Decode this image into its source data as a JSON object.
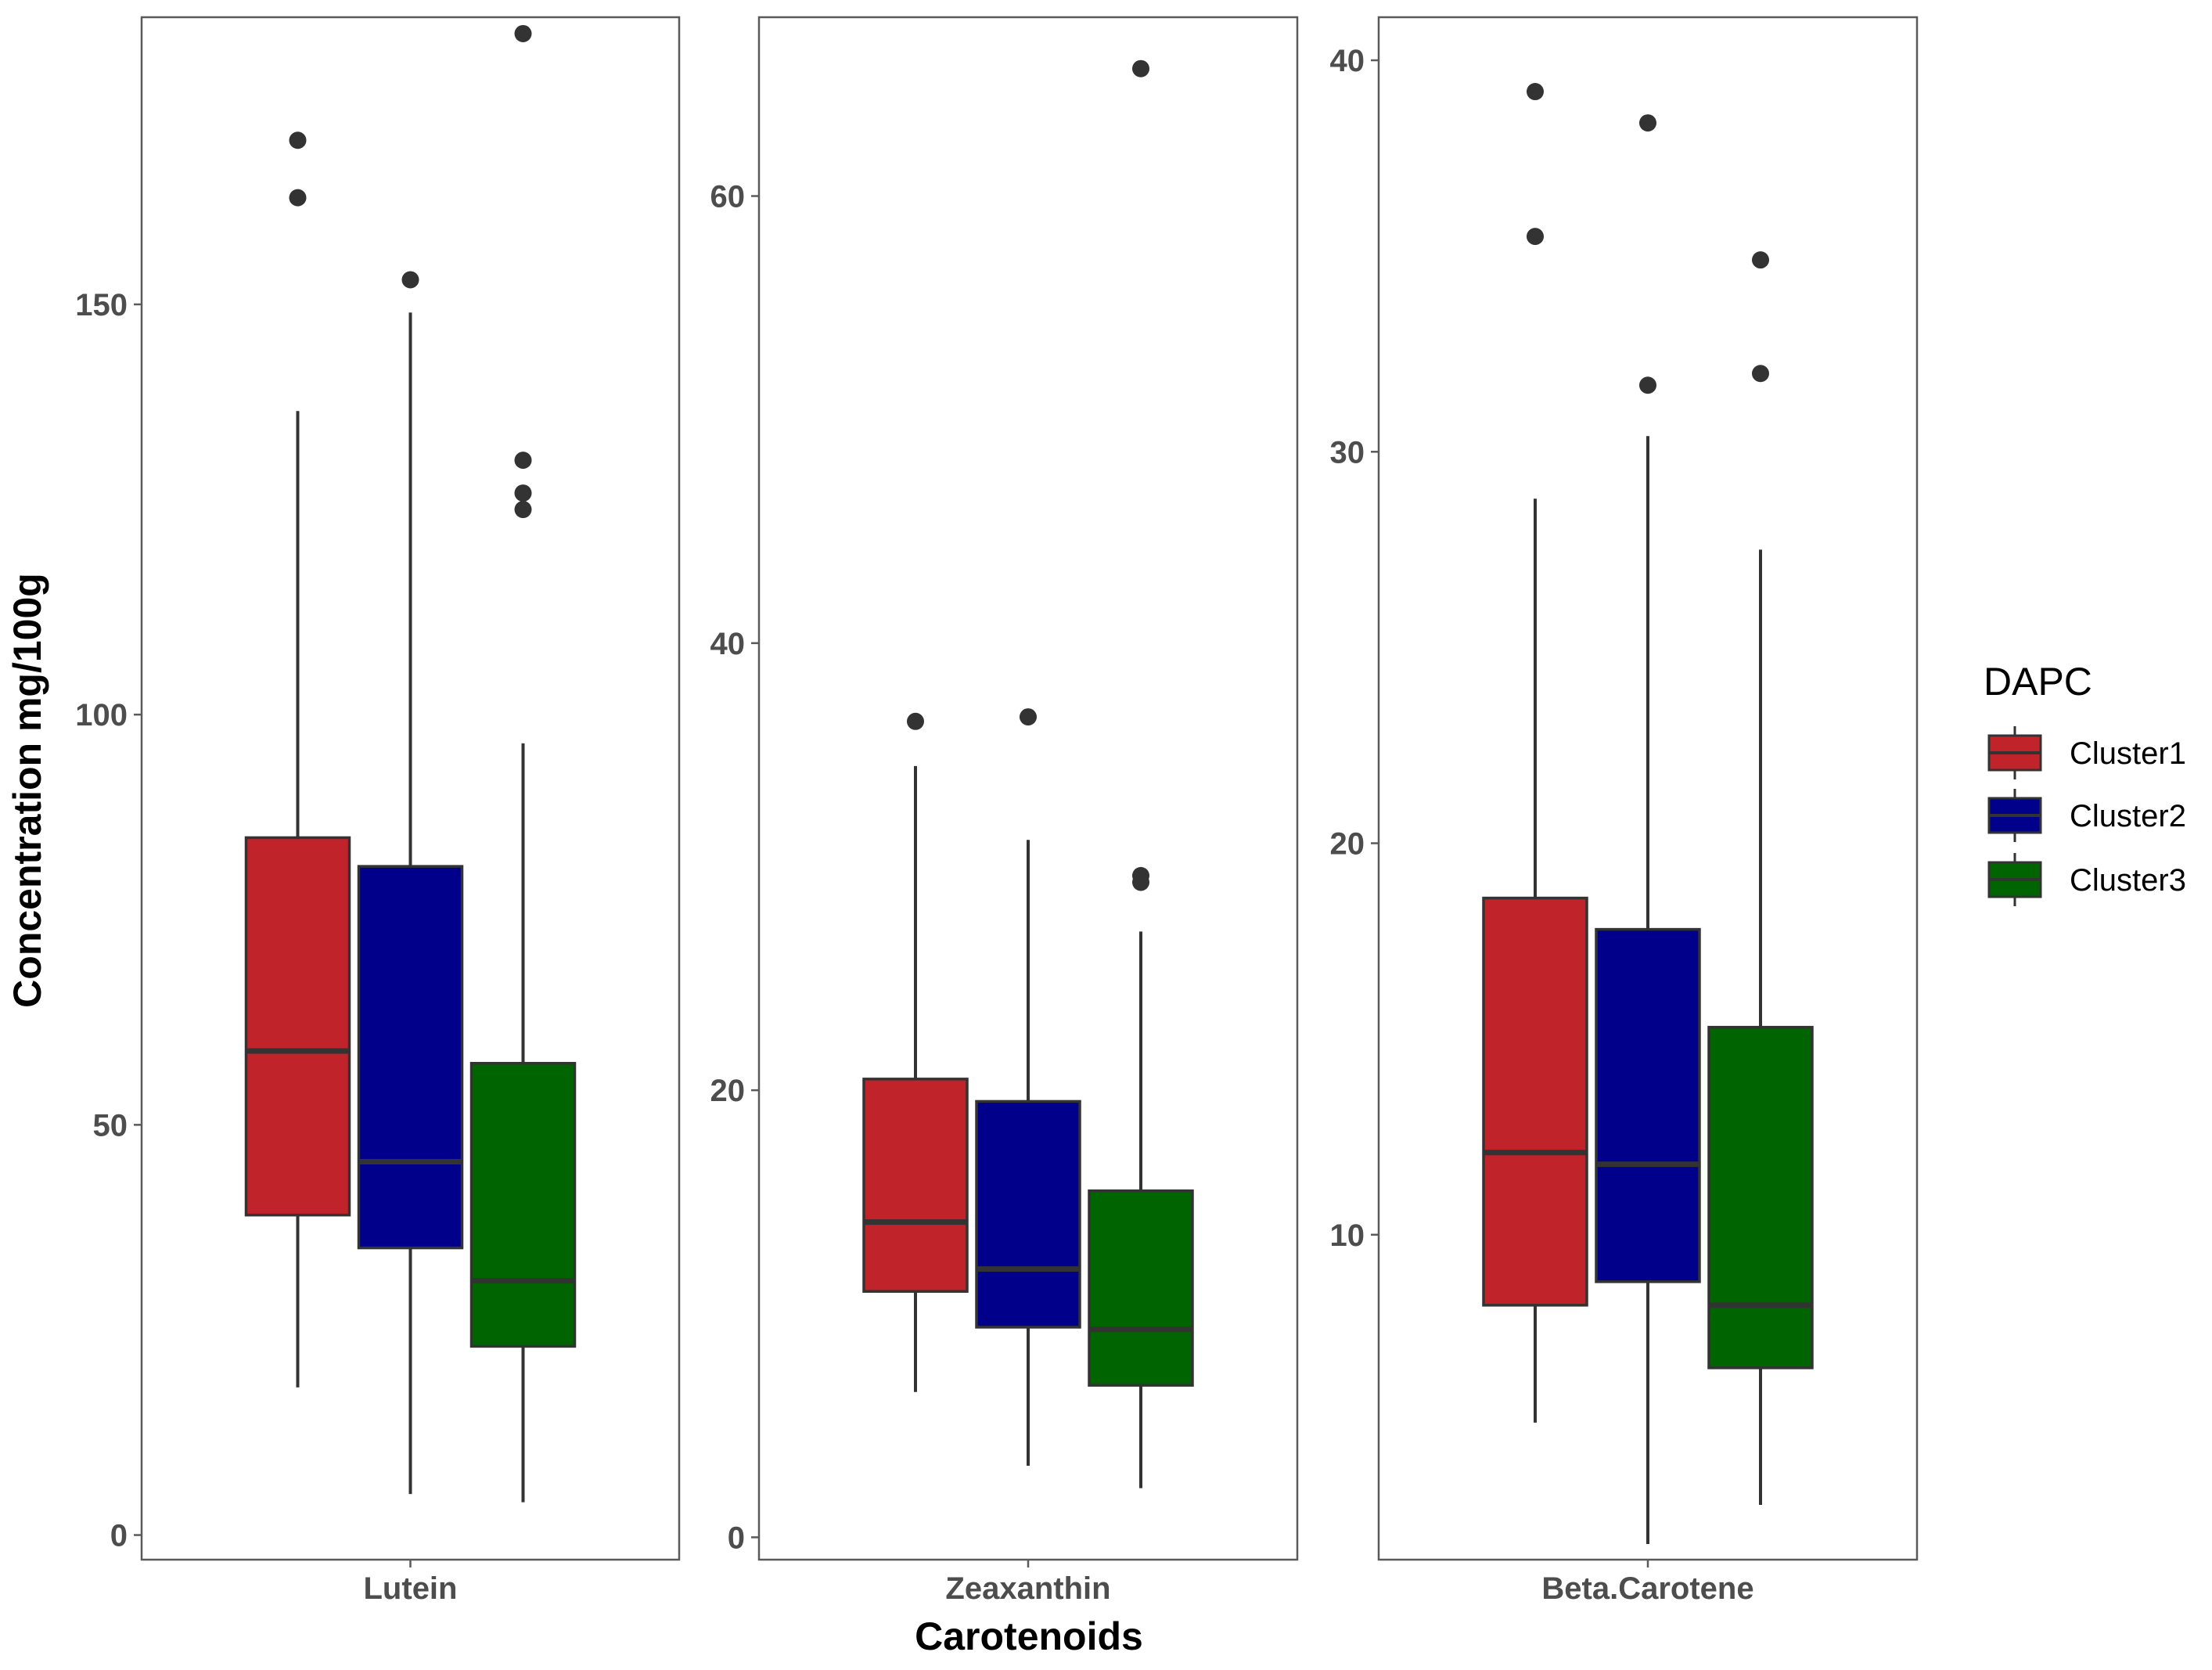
{
  "chart_data": {
    "type": "boxplot",
    "xlabel": "Carotenoids",
    "ylabel": "Concentration mg/100g",
    "legend": {
      "title": "DAPC",
      "placement": "right",
      "entries": [
        "Cluster1",
        "Cluster2",
        "Cluster3"
      ]
    },
    "colors": {
      "Cluster1": "#C0232A",
      "Cluster2": "#00008B",
      "Cluster3": "#006400",
      "outline": "#333333",
      "panel_border": "#5a5a5a",
      "tick_text": "#4d4d4d"
    },
    "panels": [
      {
        "facet": "Lutein",
        "ylim": [
          -3,
          185
        ],
        "yticks": [
          0,
          50,
          100,
          150
        ],
        "series": [
          {
            "name": "Cluster1",
            "whisker_low": 18,
            "q1": 39,
            "median": 59,
            "q3": 85,
            "whisker_high": 137,
            "outliers": [
              163,
              170
            ]
          },
          {
            "name": "Cluster2",
            "whisker_low": 5,
            "q1": 35,
            "median": 45.5,
            "q3": 81.5,
            "whisker_high": 149,
            "outliers": [
              153
            ]
          },
          {
            "name": "Cluster3",
            "whisker_low": 4,
            "q1": 23,
            "median": 31,
            "q3": 57.5,
            "whisker_high": 96.5,
            "outliers": [
              125,
              127,
              131,
              183
            ]
          }
        ]
      },
      {
        "facet": "Zeaxanthin",
        "ylim": [
          -1,
          68
        ],
        "yticks": [
          0,
          20,
          40,
          60
        ],
        "series": [
          {
            "name": "Cluster1",
            "whisker_low": 6.5,
            "q1": 11,
            "median": 14.1,
            "q3": 20.5,
            "whisker_high": 34.5,
            "outliers": [
              36.5
            ]
          },
          {
            "name": "Cluster2",
            "whisker_low": 3.2,
            "q1": 9.4,
            "median": 12,
            "q3": 19.5,
            "whisker_high": 31.2,
            "outliers": [
              36.7
            ]
          },
          {
            "name": "Cluster3",
            "whisker_low": 2.2,
            "q1": 6.8,
            "median": 9.3,
            "q3": 15.5,
            "whisker_high": 27.1,
            "outliers": [
              29.3,
              29.6,
              65.7
            ]
          }
        ]
      },
      {
        "facet": "Beta.Carotene",
        "ylim": [
          1.7,
          41.1
        ],
        "yticks": [
          10,
          20,
          30,
          40
        ],
        "series": [
          {
            "name": "Cluster1",
            "whisker_low": 5.2,
            "q1": 8.2,
            "median": 12.1,
            "q3": 18.6,
            "whisker_high": 28.8,
            "outliers": [
              35.5,
              39.2
            ]
          },
          {
            "name": "Cluster2",
            "whisker_low": 2.1,
            "q1": 8.8,
            "median": 11.8,
            "q3": 17.8,
            "whisker_high": 30.4,
            "outliers": [
              31.7,
              38.4
            ]
          },
          {
            "name": "Cluster3",
            "whisker_low": 3.1,
            "q1": 6.6,
            "median": 8.2,
            "q3": 15.3,
            "whisker_high": 27.5,
            "outliers": [
              32,
              34.9
            ]
          }
        ]
      }
    ]
  }
}
